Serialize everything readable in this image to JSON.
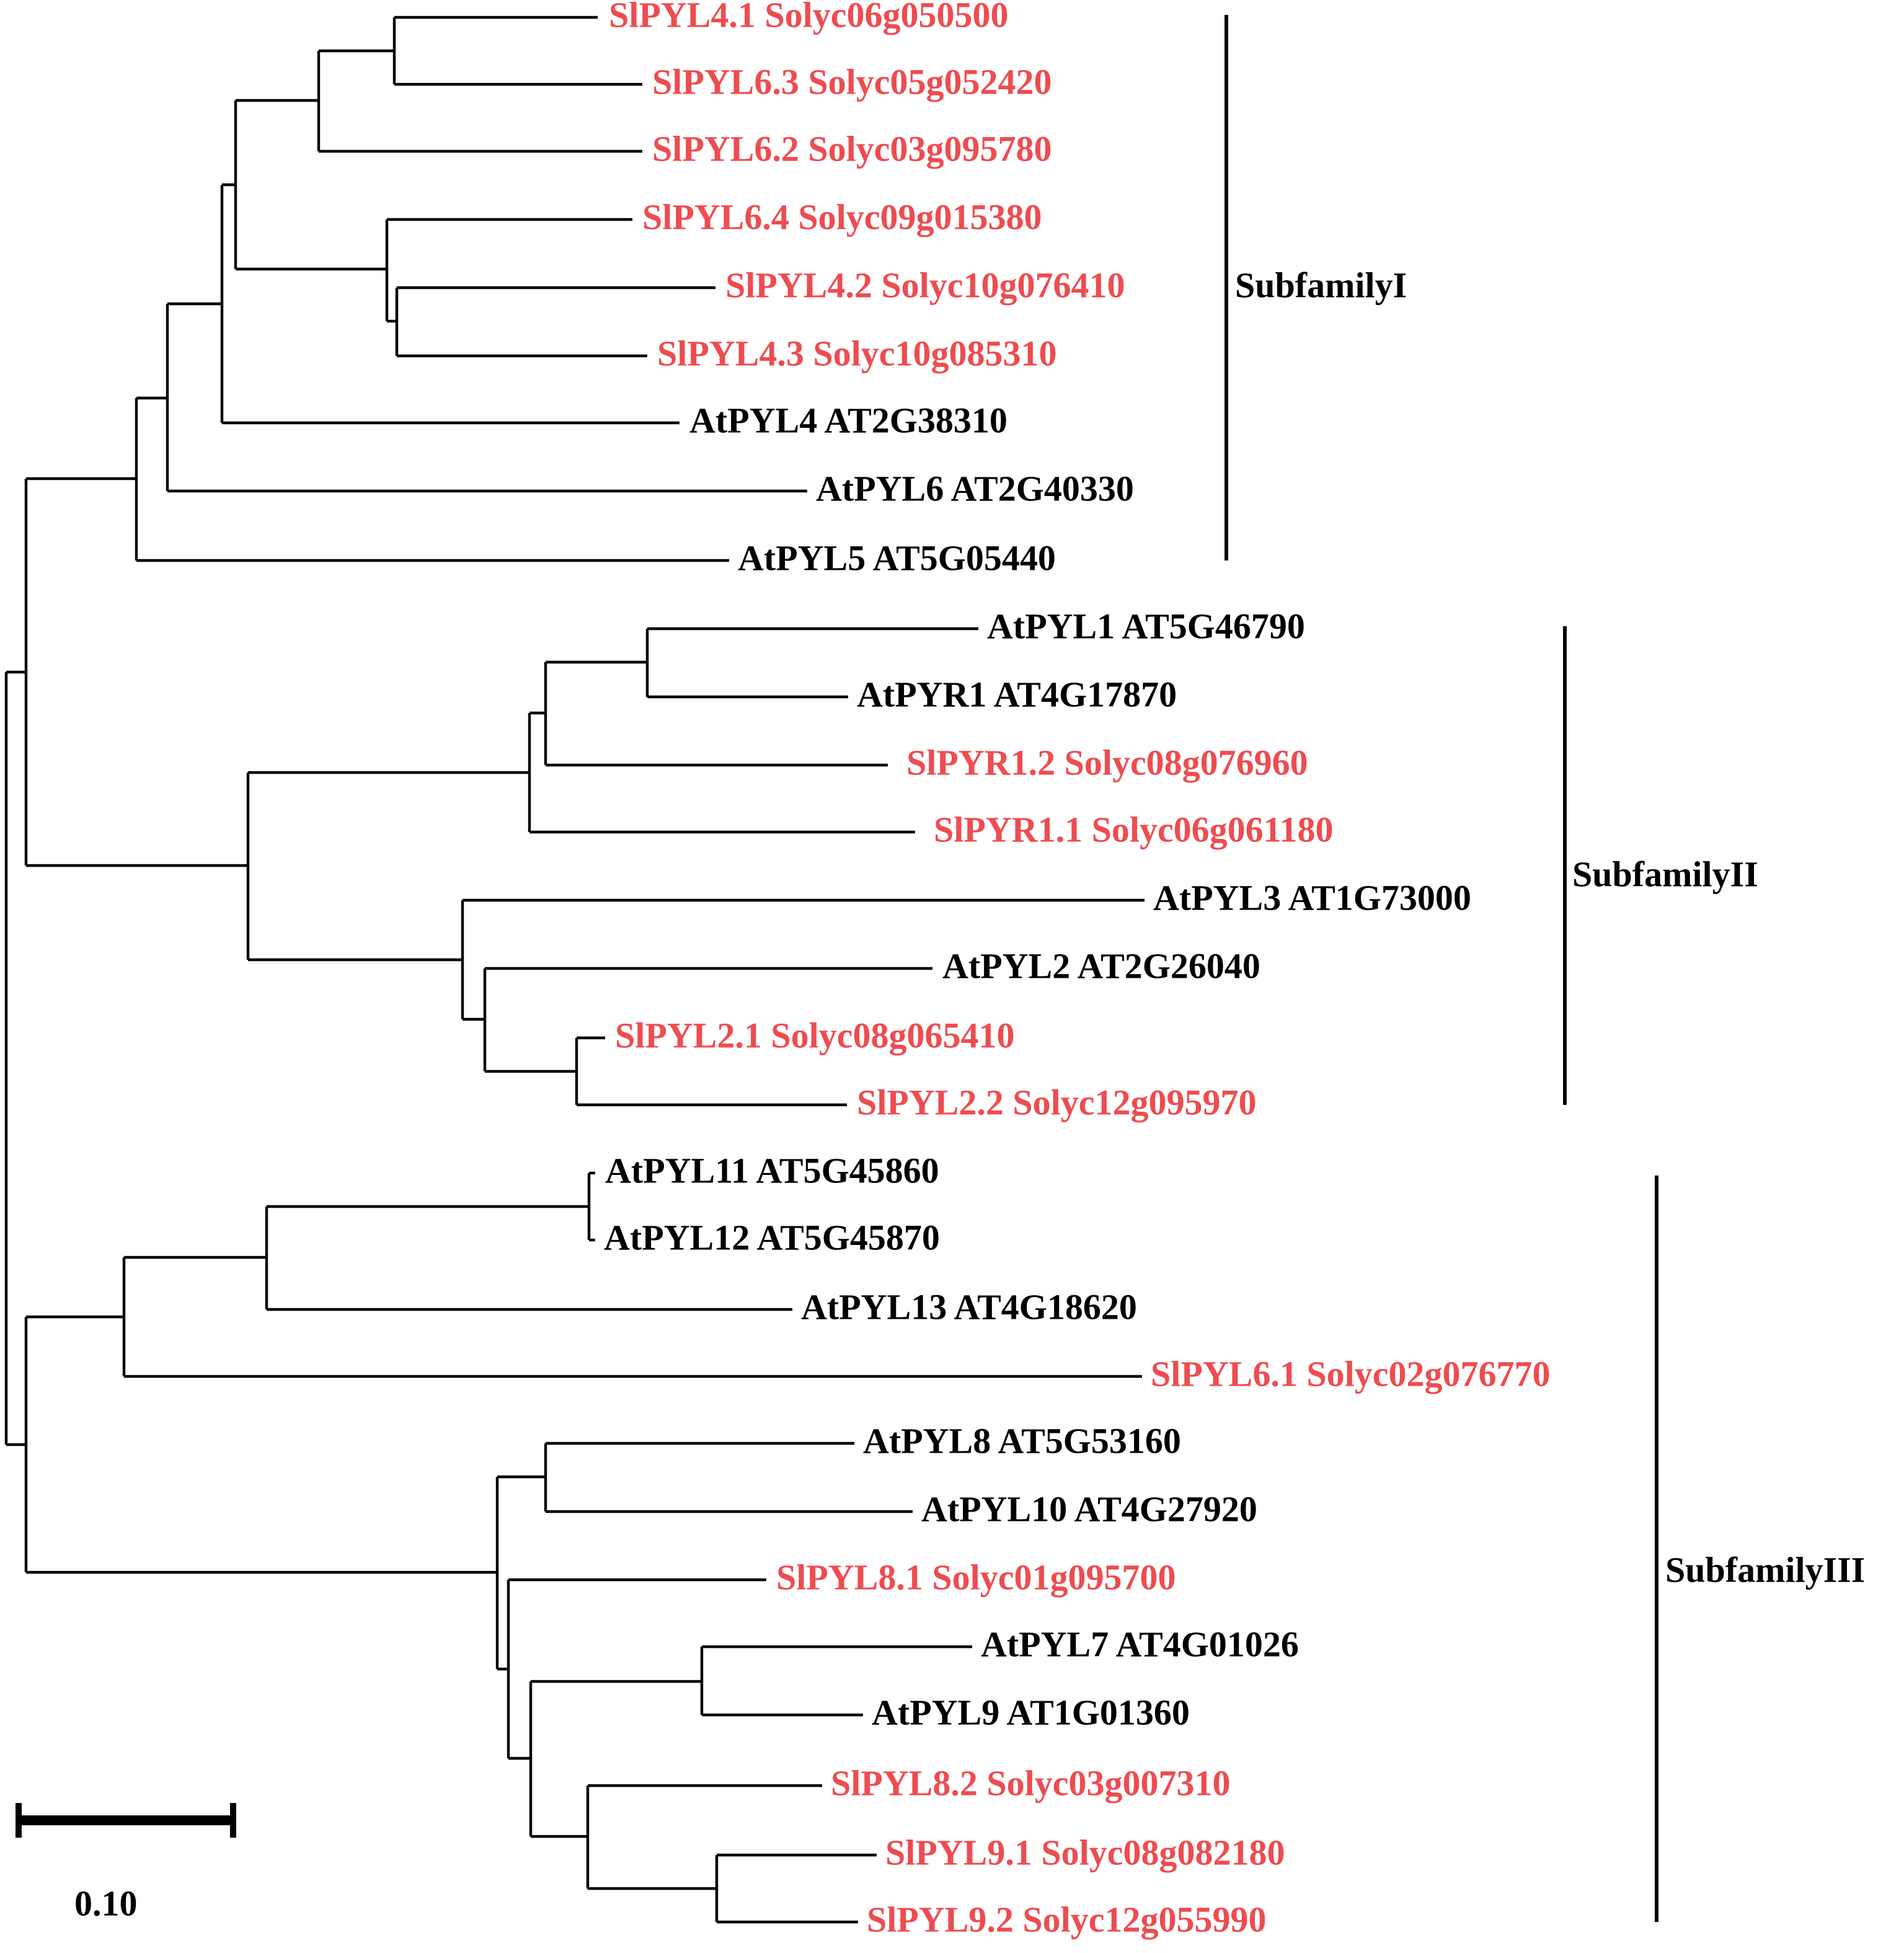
{
  "colors": {
    "tomato": "#ee4c50",
    "arabidopsis": "#000000"
  },
  "leaves": [
    {
      "label": "SlPYL4.1 Solyc06g050500",
      "species": "tomato"
    },
    {
      "label": "SlPYL6.3 Solyc05g052420",
      "species": "tomato"
    },
    {
      "label": "SlPYL6.2 Solyc03g095780",
      "species": "tomato"
    },
    {
      "label": "SlPYL6.4 Solyc09g015380",
      "species": "tomato"
    },
    {
      "label": "SlPYL4.2 Solyc10g076410",
      "species": "tomato"
    },
    {
      "label": "SlPYL4.3 Solyc10g085310",
      "species": "tomato"
    },
    {
      "label": "AtPYL4 AT2G38310",
      "species": "arabidopsis"
    },
    {
      "label": "AtPYL6 AT2G40330",
      "species": "arabidopsis"
    },
    {
      "label": "AtPYL5 AT5G05440",
      "species": "arabidopsis"
    },
    {
      "label": "AtPYL1 AT5G46790",
      "species": "arabidopsis"
    },
    {
      "label": "AtPYR1 AT4G17870",
      "species": "arabidopsis"
    },
    {
      "label": "SlPYR1.2 Solyc08g076960",
      "species": "tomato"
    },
    {
      "label": "SlPYR1.1 Solyc06g061180",
      "species": "tomato"
    },
    {
      "label": "AtPYL3 AT1G73000",
      "species": "arabidopsis"
    },
    {
      "label": "AtPYL2 AT2G26040",
      "species": "arabidopsis"
    },
    {
      "label": "SlPYL2.1 Solyc08g065410",
      "species": "tomato"
    },
    {
      "label": "SlPYL2.2 Solyc12g095970",
      "species": "tomato"
    },
    {
      "label": "AtPYL11 AT5G45860",
      "species": "arabidopsis"
    },
    {
      "label": "AtPYL12 AT5G45870",
      "species": "arabidopsis"
    },
    {
      "label": "AtPYL13 AT4G18620",
      "species": "arabidopsis"
    },
    {
      "label": "SlPYL6.1 Solyc02g076770",
      "species": "tomato"
    },
    {
      "label": "AtPYL8 AT5G53160",
      "species": "arabidopsis"
    },
    {
      "label": "AtPYL10 AT4G27920",
      "species": "arabidopsis"
    },
    {
      "label": "SlPYL8.1 Solyc01g095700",
      "species": "tomato"
    },
    {
      "label": "AtPYL7 AT4G01026",
      "species": "arabidopsis"
    },
    {
      "label": "AtPYL9 AT1G01360",
      "species": "arabidopsis"
    },
    {
      "label": "SlPYL8.2 Solyc03g007310",
      "species": "tomato"
    },
    {
      "label": "SlPYL9.1 Solyc08g082180",
      "species": "tomato"
    },
    {
      "label": "SlPYL9.2 Solyc12g055990",
      "species": "tomato"
    }
  ],
  "subfamilies": [
    {
      "label": "SubfamilyI"
    },
    {
      "label": "SubfamilyII"
    },
    {
      "label": "SubfamilyIII"
    }
  ],
  "scale_bar": {
    "label": "0.10",
    "value": 0.1
  }
}
